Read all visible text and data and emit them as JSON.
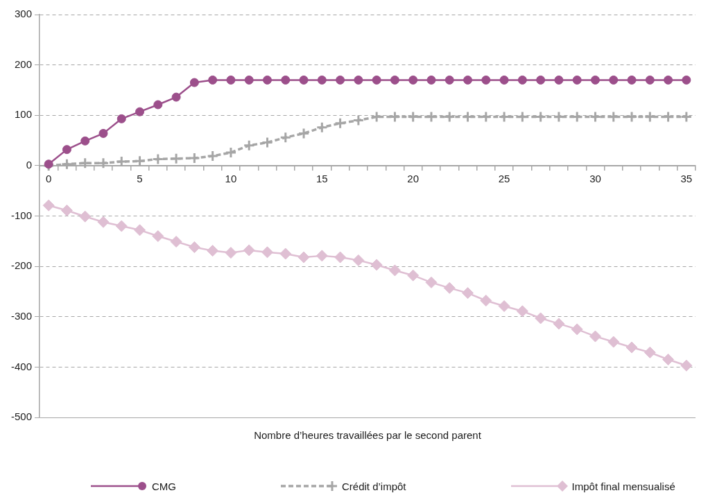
{
  "chart_data": {
    "type": "line",
    "xlabel": "Nombre d’heures travaillées par le second parent",
    "categories": [
      "0",
      null,
      null,
      null,
      null,
      "5",
      null,
      null,
      null,
      null,
      "10",
      null,
      null,
      null,
      null,
      "15",
      null,
      null,
      null,
      null,
      "20",
      null,
      null,
      null,
      null,
      "25",
      null,
      null,
      null,
      null,
      "30",
      null,
      null,
      null,
      null,
      "35"
    ],
    "ylim": [
      -500,
      300
    ],
    "yticks": [
      -500,
      -400,
      -300,
      -200,
      -100,
      0,
      100,
      200,
      300
    ],
    "grid": "y",
    "legend": "bottom",
    "series": [
      {
        "name": "CMG",
        "color": "#9c4f8b",
        "marker": "circle",
        "line_style": "solid",
        "values": [
          3,
          32,
          49,
          64,
          93,
          107,
          121,
          136,
          165,
          170,
          170,
          170,
          170,
          170,
          170,
          170,
          170,
          170,
          170,
          170,
          170,
          170,
          170,
          170,
          170,
          170,
          170,
          170,
          170,
          170,
          170,
          170,
          170,
          170,
          170,
          170
        ]
      },
      {
        "name": "Crédit d’impôt",
        "color": "#a6a6a6",
        "marker": "cross",
        "line_style": "dashed",
        "values": [
          0,
          3,
          5,
          5,
          8,
          9,
          13,
          14,
          15,
          19,
          26,
          40,
          46,
          56,
          64,
          76,
          84,
          90,
          97,
          97,
          97,
          97,
          97,
          97,
          97,
          97,
          97,
          97,
          97,
          97,
          97,
          97,
          97,
          97,
          97,
          97
        ]
      },
      {
        "name": "Impôt final mensualisé",
        "color": "#dfbfd3",
        "marker": "diamond",
        "line_style": "solid",
        "values": [
          -79,
          -89,
          -101,
          -112,
          -120,
          -128,
          -140,
          -151,
          -162,
          -169,
          -173,
          -168,
          -172,
          -175,
          -182,
          -179,
          -182,
          -188,
          -197,
          -208,
          -218,
          -232,
          -243,
          -253,
          -268,
          -279,
          -289,
          -303,
          -314,
          -325,
          -339,
          -350,
          -361,
          -371,
          -385,
          -397
        ]
      }
    ]
  }
}
